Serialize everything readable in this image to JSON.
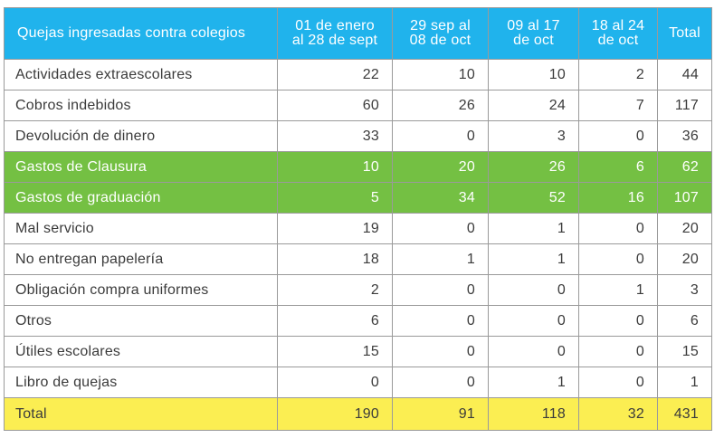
{
  "table": {
    "headers": [
      "Quejas ingresadas  contra colegios",
      "01 de enero al 28 de sept",
      "29 sep al 08 de oct",
      "09 al 17 de oct",
      "18 al 24 de oct",
      "Total"
    ],
    "rows": [
      {
        "label": "Actividades extraescolares",
        "values": [
          "22",
          "10",
          "10",
          "2",
          "44"
        ]
      },
      {
        "label": "Cobros indebidos",
        "values": [
          "60",
          "26",
          "24",
          "7",
          "117"
        ]
      },
      {
        "label": "Devolución de dinero",
        "values": [
          "33",
          "0",
          "3",
          "0",
          "36"
        ]
      },
      {
        "label": "Gastos de Clausura",
        "values": [
          "10",
          "20",
          "26",
          "6",
          "62"
        ]
      },
      {
        "label": "Gastos de graduación",
        "values": [
          "5",
          "34",
          "52",
          "16",
          "107"
        ]
      },
      {
        "label": "Mal servicio",
        "values": [
          "19",
          "0",
          "1",
          "0",
          "20"
        ]
      },
      {
        "label": "No entregan papelería",
        "values": [
          "18",
          "1",
          "1",
          "0",
          "20"
        ]
      },
      {
        "label": "Obligación compra uniformes",
        "values": [
          "2",
          "0",
          "0",
          "1",
          "3"
        ]
      },
      {
        "label": "Otros",
        "values": [
          "6",
          "0",
          "0",
          "0",
          "6"
        ]
      },
      {
        "label": "Útiles escolares",
        "values": [
          "15",
          "0",
          "0",
          "0",
          "15"
        ]
      },
      {
        "label": "Libro de quejas",
        "values": [
          "0",
          "0",
          "1",
          "0",
          "1"
        ]
      }
    ],
    "total": {
      "label": "Total",
      "values": [
        "190",
        "91",
        "118",
        "32",
        "431"
      ]
    }
  },
  "colors": {
    "header": "#20b3ec",
    "highlight_rows": "#74c043",
    "total_row": "#fbee52",
    "grid": "#9a9a9a"
  }
}
